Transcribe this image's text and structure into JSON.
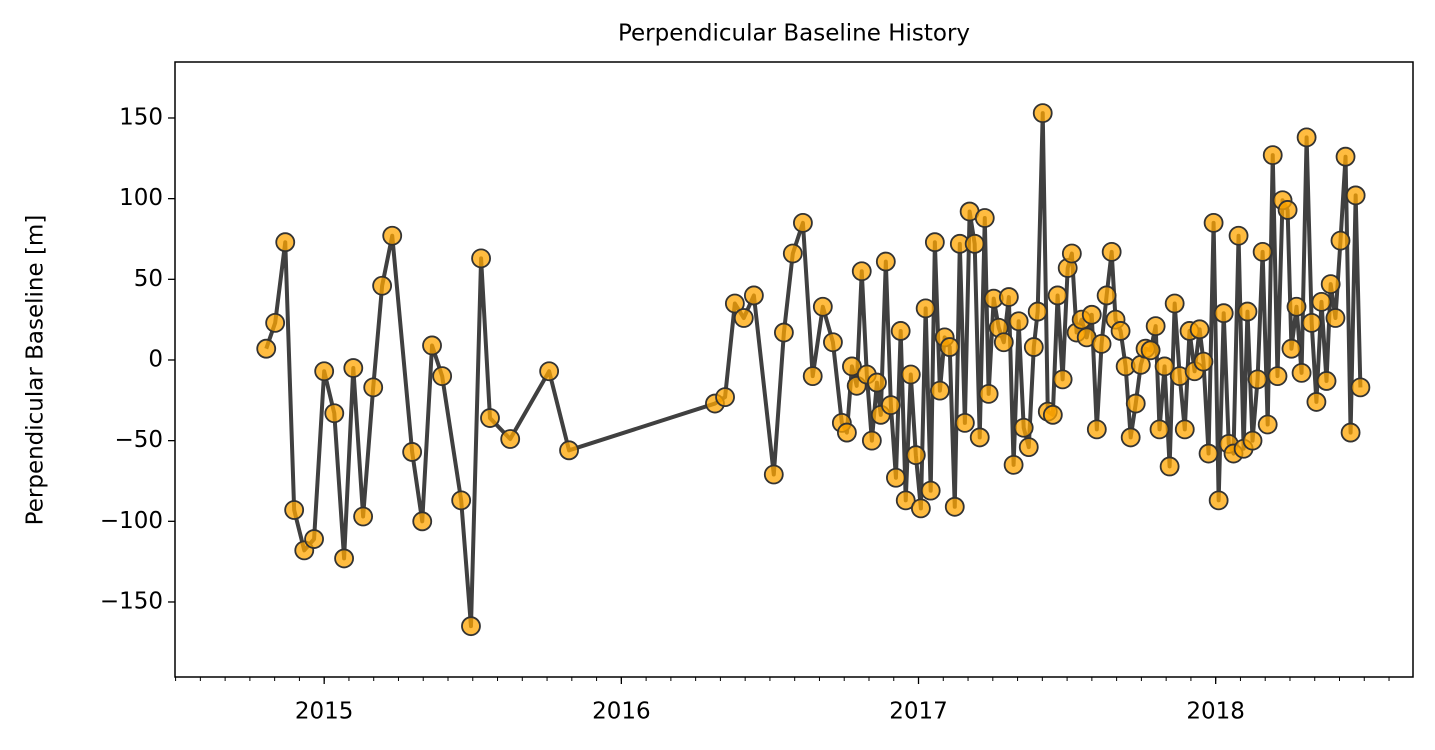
{
  "chart_data": {
    "type": "line",
    "title": "Perpendicular Baseline History",
    "ylabel": "Perpendicular Baseline [m]",
    "line_color": "#404040",
    "color": "#ffa500",
    "edge_color": "#333333",
    "xlim": [
      2014.498,
      2018.664
    ],
    "xticks": [
      2015,
      2016,
      2017,
      2018
    ],
    "ylim": [
      -196.5,
      184.7
    ],
    "yticks": [
      {
        "value": -150,
        "label": "−150"
      },
      {
        "value": -100,
        "label": "−100"
      },
      {
        "value": -50,
        "label": "−50"
      },
      0,
      50,
      100,
      150
    ],
    "x": [
      2014.805,
      2014.835,
      2014.869,
      2014.899,
      2014.933,
      2014.966,
      2015.0,
      2015.034,
      2015.067,
      2015.098,
      2015.131,
      2015.165,
      2015.195,
      2015.229,
      2015.296,
      2015.33,
      2015.363,
      2015.397,
      2015.461,
      2015.494,
      2015.528,
      2015.558,
      2015.626,
      2015.757,
      2015.824,
      2016.315,
      2016.349,
      2016.382,
      2016.412,
      2016.446,
      2016.513,
      2016.547,
      2016.577,
      2016.611,
      2016.644,
      2016.678,
      2016.712,
      2016.742,
      2016.759,
      2016.776,
      2016.792,
      2016.809,
      2016.826,
      2016.843,
      2016.86,
      2016.873,
      2016.89,
      2016.907,
      2016.924,
      2016.94,
      2016.957,
      2016.974,
      2016.991,
      2017.008,
      2017.024,
      2017.041,
      2017.055,
      2017.072,
      2017.088,
      2017.105,
      2017.122,
      2017.139,
      2017.156,
      2017.172,
      2017.189,
      2017.206,
      2017.223,
      2017.236,
      2017.253,
      2017.27,
      2017.287,
      2017.304,
      2017.32,
      2017.337,
      2017.354,
      2017.371,
      2017.388,
      2017.401,
      2017.418,
      2017.435,
      2017.452,
      2017.468,
      2017.485,
      2017.502,
      2017.516,
      2017.532,
      2017.549,
      2017.566,
      2017.583,
      2017.6,
      2017.616,
      2017.633,
      2017.65,
      2017.663,
      2017.68,
      2017.697,
      2017.714,
      2017.731,
      2017.748,
      2017.764,
      2017.781,
      2017.798,
      2017.811,
      2017.828,
      2017.845,
      2017.862,
      2017.879,
      2017.896,
      2017.912,
      2017.929,
      2017.946,
      2017.959,
      2017.976,
      2017.993,
      2018.01,
      2018.027,
      2018.044,
      2018.06,
      2018.077,
      2018.094,
      2018.107,
      2018.124,
      2018.141,
      2018.158,
      2018.175,
      2018.192,
      2018.208,
      2018.225,
      2018.242,
      2018.255,
      2018.272,
      2018.289,
      2018.306,
      2018.323,
      2018.339,
      2018.356,
      2018.373,
      2018.387,
      2018.403,
      2018.42,
      2018.437,
      2018.454,
      2018.471,
      2018.487
    ],
    "values": [
      7,
      23,
      73,
      -93,
      -118,
      -111,
      -7,
      -33,
      -123,
      -5,
      -97,
      -17,
      46,
      77,
      -57,
      -100,
      9,
      -10,
      -87,
      -165,
      63,
      -36,
      -49,
      -7,
      -56,
      -27,
      -23,
      35,
      26,
      40,
      -71,
      17,
      66,
      85,
      -10,
      33,
      11,
      -39,
      -45,
      -4,
      -16,
      55,
      -9,
      -50,
      -14,
      -34,
      61,
      -28,
      -73,
      18,
      -87,
      -9,
      -59,
      -92,
      32,
      -81,
      73,
      -19,
      14,
      8,
      -91,
      72,
      -39,
      92,
      72,
      -48,
      88,
      -21,
      38,
      20,
      11,
      39,
      -65,
      24,
      -42,
      -54,
      8,
      30,
      153,
      -32,
      -34,
      40,
      -12,
      57,
      66,
      17,
      25,
      14,
      28,
      -43,
      10,
      40,
      67,
      25,
      18,
      -4,
      -48,
      -27,
      -3,
      7,
      6,
      21,
      -43,
      -4,
      -66,
      35,
      -10,
      -43,
      18,
      -7,
      19,
      -1,
      -58,
      85,
      -87,
      29,
      -52,
      -58,
      77,
      -55,
      30,
      -50,
      -12,
      67,
      -40,
      127,
      -10,
      99,
      93,
      7,
      33,
      -8,
      138,
      23,
      -26,
      36,
      -13,
      47,
      26,
      74,
      126,
      -45,
      102,
      -17
    ]
  }
}
